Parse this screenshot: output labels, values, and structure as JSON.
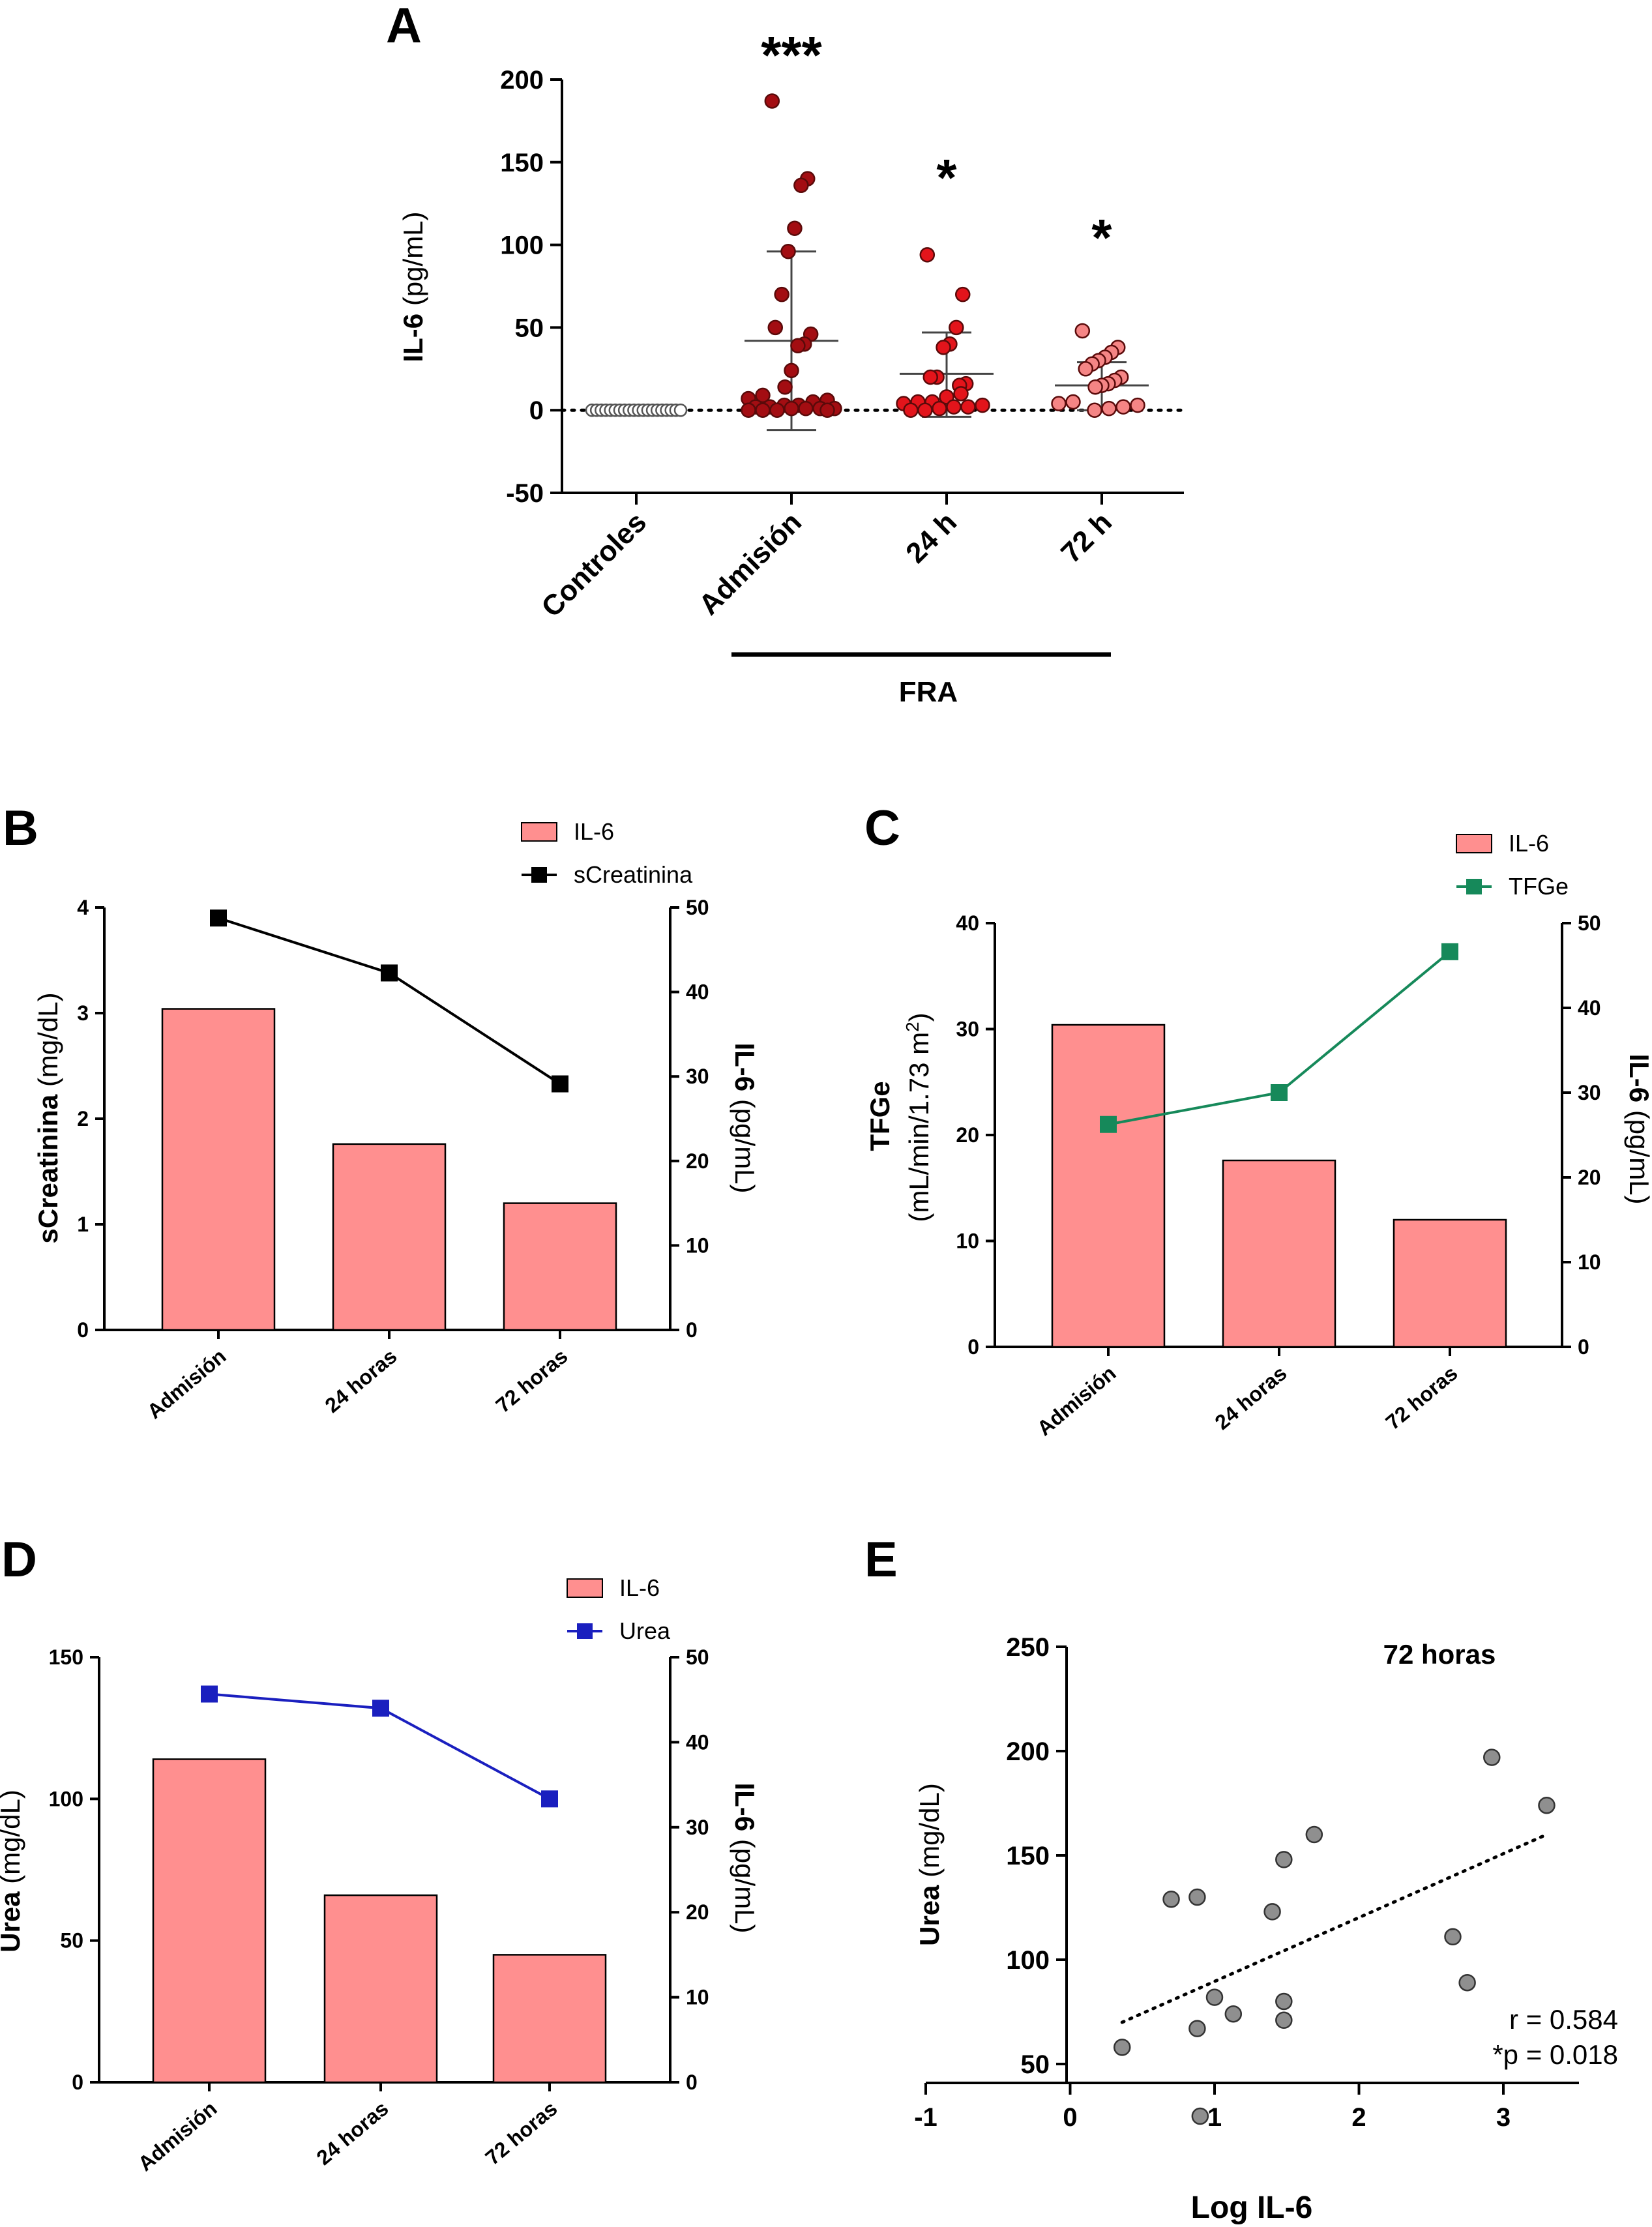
{
  "chart_data": [
    {
      "panel": "A",
      "type": "scatter",
      "ylabel_bold": "IL-6",
      "ylabel_rest": " (pg/mL)",
      "ylim": [
        -50,
        200
      ],
      "yticks": [
        "-50",
        "0",
        "50",
        "100",
        "150",
        "200"
      ],
      "categories": [
        "Controles",
        "Admisión",
        "24 h",
        "72 h"
      ],
      "group_label": "FRA",
      "significance": [
        "",
        "***",
        "*",
        "*"
      ],
      "colors": [
        "#ffffff",
        "#a30d12",
        "#e3141b",
        "#f58585"
      ],
      "series": [
        {
          "values": [
            0,
            0,
            0,
            0,
            0,
            0,
            0,
            0,
            0,
            0,
            0,
            0,
            0,
            0,
            0,
            0,
            0,
            0,
            0,
            0
          ]
        },
        {
          "values": [
            187,
            140,
            136,
            110,
            96,
            70,
            50,
            46,
            40,
            39,
            24,
            14,
            9,
            7,
            6,
            5,
            3,
            3,
            2,
            2,
            1,
            1,
            1,
            1,
            0,
            0,
            0,
            0
          ],
          "mean": 42,
          "sd_low": -12,
          "sd_high": 96
        },
        {
          "values": [
            94,
            70,
            50,
            40,
            38,
            20,
            20,
            16,
            15,
            10,
            8,
            5,
            5,
            4,
            3,
            2,
            2,
            1,
            0,
            0
          ],
          "mean": 22,
          "sd_low": -4,
          "sd_high": 47
        },
        {
          "values": [
            48,
            38,
            35,
            32,
            30,
            28,
            25,
            20,
            18,
            16,
            15,
            14,
            5,
            4,
            3,
            2,
            1,
            0
          ],
          "mean": 15,
          "sd_low": 0,
          "sd_high": 29
        }
      ]
    },
    {
      "panel": "B",
      "type": "bar",
      "categories": [
        "Admisión",
        "24 horas",
        "72 horas"
      ],
      "ylabel_bold": "sCreatinina",
      "ylabel_rest": " (mg/dL)",
      "ylim": [
        0,
        4
      ],
      "yticks": [
        "0",
        "1",
        "2",
        "3",
        "4"
      ],
      "y2label_bold": "IL-6",
      "y2label_rest": " (pg/mL)",
      "y2lim": [
        0,
        50
      ],
      "y2ticks": [
        "0",
        "10",
        "20",
        "30",
        "40",
        "50"
      ],
      "series": [
        {
          "name": "IL-6",
          "axis": "right",
          "kind": "bar",
          "values": [
            38,
            22,
            15
          ],
          "color": "#ff8f8f"
        },
        {
          "name": "sCreatinina",
          "axis": "left",
          "kind": "line",
          "values": [
            3.9,
            3.38,
            2.33
          ],
          "color": "#000000"
        }
      ],
      "legend": "top-right"
    },
    {
      "panel": "C",
      "type": "bar",
      "categories": [
        "Admisión",
        "24 horas",
        "72 horas"
      ],
      "ylabel_bold": "TFGe",
      "ylabel_unit": "(mL/min/1.73 m",
      "ylabel_sup": "2",
      "ylabel_close": ")",
      "ylim": [
        0,
        40
      ],
      "yticks": [
        "0",
        "10",
        "20",
        "30",
        "40"
      ],
      "y2label_bold": "IL-6",
      "y2label_rest": " (pg/mL)",
      "y2lim": [
        0,
        50
      ],
      "y2ticks": [
        "0",
        "10",
        "20",
        "30",
        "40",
        "50"
      ],
      "series": [
        {
          "name": "IL-6",
          "axis": "right",
          "kind": "bar",
          "values": [
            38,
            22,
            15
          ],
          "color": "#ff8f8f"
        },
        {
          "name": "TFGe",
          "axis": "left",
          "kind": "line",
          "values": [
            21,
            24,
            37.3
          ],
          "color": "#16895a"
        }
      ],
      "legend": "top-right"
    },
    {
      "panel": "D",
      "type": "bar",
      "categories": [
        "Admisión",
        "24 horas",
        "72 horas"
      ],
      "ylabel_bold": "Urea",
      "ylabel_rest": " (mg/dL)",
      "ylim": [
        0,
        150
      ],
      "yticks": [
        "0",
        "50",
        "100",
        "150"
      ],
      "y2label_bold": "IL-6",
      "y2label_rest": " (pg/mL)",
      "y2lim": [
        0,
        50
      ],
      "y2ticks": [
        "0",
        "10",
        "20",
        "30",
        "40",
        "50"
      ],
      "series": [
        {
          "name": "IL-6",
          "axis": "right",
          "kind": "bar",
          "values": [
            38,
            22,
            15
          ],
          "color": "#ff8f8f"
        },
        {
          "name": "Urea",
          "axis": "left",
          "kind": "line",
          "values": [
            137,
            132,
            100
          ],
          "color": "#1a1fbf"
        }
      ],
      "legend": "top-right"
    },
    {
      "panel": "E",
      "type": "scatter",
      "title": "72 horas",
      "xlabel": "Log IL-6",
      "ylabel_bold": "Urea",
      "ylabel_rest": " (mg/dL)",
      "xlim": [
        -1,
        3.4
      ],
      "ylim": [
        0,
        250
      ],
      "xticks": [
        "-1",
        "0",
        "1",
        "2",
        "3"
      ],
      "yticks": [
        "50",
        "100",
        "150",
        "200",
        "250"
      ],
      "points": [
        {
          "x": 0.36,
          "y": 58
        },
        {
          "x": 0.7,
          "y": 129
        },
        {
          "x": 0.88,
          "y": 130
        },
        {
          "x": 0.88,
          "y": 67
        },
        {
          "x": 0.9,
          "y": 25
        },
        {
          "x": 1.0,
          "y": 82
        },
        {
          "x": 1.13,
          "y": 74
        },
        {
          "x": 1.4,
          "y": 123
        },
        {
          "x": 1.48,
          "y": 148
        },
        {
          "x": 1.48,
          "y": 80
        },
        {
          "x": 1.48,
          "y": 71
        },
        {
          "x": 1.69,
          "y": 160
        },
        {
          "x": 2.65,
          "y": 111
        },
        {
          "x": 2.75,
          "y": 89
        },
        {
          "x": 2.92,
          "y": 197
        },
        {
          "x": 3.3,
          "y": 174
        }
      ],
      "trend": {
        "x1": 0.36,
        "y1": 70,
        "x2": 3.3,
        "y2": 160
      },
      "r_text": "r = 0.584",
      "p_text": "*p = 0.018"
    }
  ],
  "panel_letters": [
    "A",
    "B",
    "C",
    "D",
    "E"
  ]
}
